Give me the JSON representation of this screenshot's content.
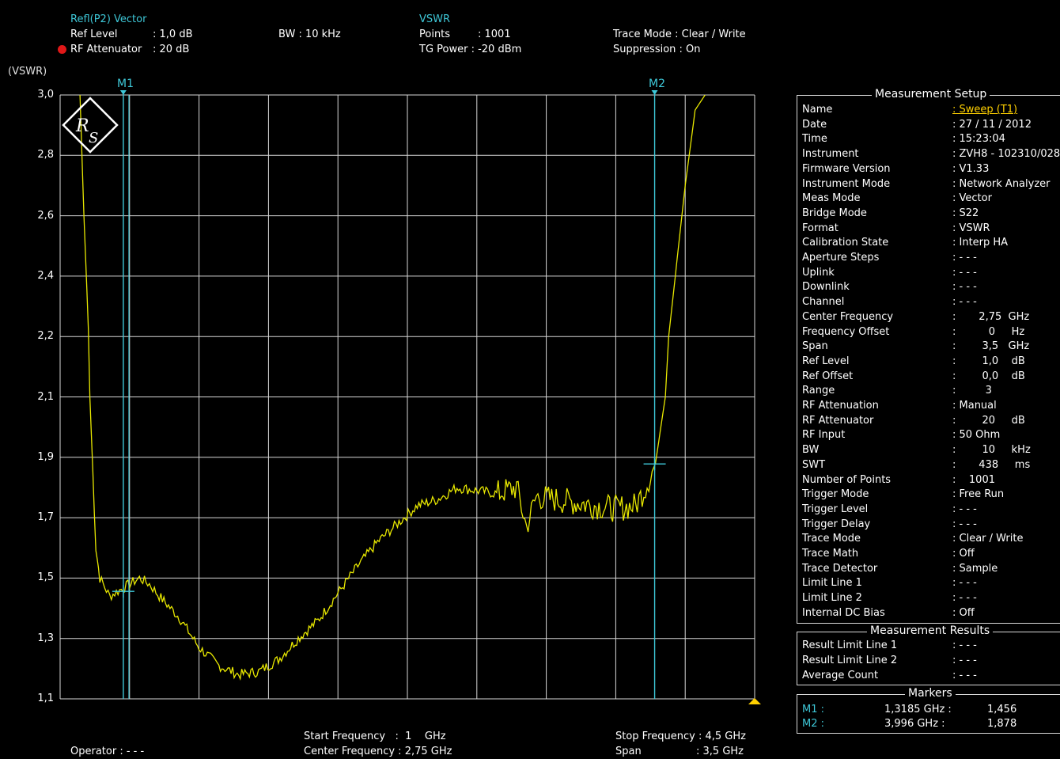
{
  "header": {
    "trace1_name": "Refl(P2) Vector",
    "ref_level_label": "Ref Level",
    "ref_level_value": ": 1,0 dB",
    "rf_att_label": "RF Attenuator",
    "rf_att_value": ": 20  dB",
    "bw": "BW : 10 kHz",
    "format_name": "VSWR",
    "points_label": "Points",
    "points_value": ": 1001",
    "tg_power": "TG Power : -20 dBm",
    "trace_mode": "Trace Mode : Clear / Write",
    "suppression": "Suppression : On",
    "y_unit": "(VSWR)"
  },
  "markers_on_plot": {
    "m1": "M1",
    "m2": "M2"
  },
  "footer": {
    "operator": "Operator : - - -",
    "start_freq": "Start Frequency   :  1    GHz",
    "center_freq": "Center Frequency : 2,75 GHz",
    "stop_freq": "Stop Frequency : 4,5 GHz",
    "span_label": "Span",
    "span_value": ": 3,5 GHz"
  },
  "chart_data": {
    "type": "line",
    "xlabel": "",
    "ylabel": "(VSWR)",
    "x_unit": "GHz",
    "xlim": [
      1,
      4.5
    ],
    "y_tick_labels": [
      "3,0",
      "2,8",
      "2,6",
      "2,4",
      "2,2",
      "2,1",
      "1,9",
      "1,7",
      "1,5",
      "1,3",
      "1,1"
    ],
    "grid": true,
    "trace_color": "#e8e800",
    "markers": [
      {
        "name": "M1",
        "x": 1.3185,
        "y": 1.456
      },
      {
        "name": "M2",
        "x": 3.996,
        "y": 1.878
      }
    ],
    "series": [
      {
        "x": [
          1.1,
          1.12,
          1.15,
          1.18,
          1.2,
          1.25,
          1.3,
          1.35,
          1.4,
          1.45,
          1.5,
          1.6,
          1.7,
          1.75,
          1.8,
          1.9,
          2.0,
          2.1,
          2.2,
          2.3,
          2.4,
          2.5,
          2.6,
          2.7,
          2.8,
          2.9,
          3.0,
          3.1,
          3.2,
          3.3,
          3.35,
          3.4,
          3.5,
          3.6,
          3.7,
          3.8,
          3.9,
          3.95,
          4.0,
          4.05,
          4.1,
          4.15,
          4.2,
          4.25
        ],
        "y": [
          3.0,
          2.6,
          2.1,
          1.6,
          1.5,
          1.44,
          1.46,
          1.48,
          1.5,
          1.48,
          1.44,
          1.37,
          1.27,
          1.24,
          1.21,
          1.18,
          1.19,
          1.23,
          1.3,
          1.36,
          1.45,
          1.54,
          1.62,
          1.68,
          1.74,
          1.76,
          1.8,
          1.79,
          1.78,
          1.8,
          1.67,
          1.77,
          1.76,
          1.75,
          1.74,
          1.73,
          1.74,
          1.8,
          1.88,
          2.1,
          2.4,
          2.7,
          2.95,
          3.0
        ]
      }
    ]
  },
  "setup": {
    "title": "Measurement Setup",
    "rows": [
      {
        "label": "Name",
        "value": ": Sweep (T1)"
      },
      {
        "label": "Date",
        "value": ": 27 / 11 / 2012"
      },
      {
        "label": "Time",
        "value": ": 15:23:04"
      },
      {
        "label": "Instrument",
        "value": ": ZVH8 - 102310/028"
      },
      {
        "label": "Firmware Version",
        "value": ": V1.33"
      },
      {
        "label": "Instrument Mode",
        "value": ": Network Analyzer"
      },
      {
        "label": "Meas Mode",
        "value": ": Vector"
      },
      {
        "label": "Bridge Mode",
        "value": ": S22"
      },
      {
        "label": "Format",
        "value": ": VSWR"
      },
      {
        "label": "Calibration State",
        "value": ": Interp HA"
      },
      {
        "label": "Aperture Steps",
        "value": ": - - -"
      },
      {
        "label": "Uplink",
        "value": ": - - -"
      },
      {
        "label": "Downlink",
        "value": ": - - -"
      },
      {
        "label": "Channel",
        "value": ": - - -"
      },
      {
        "label": "Center Frequency",
        "value": ":       2,75  GHz"
      },
      {
        "label": "Frequency Offset",
        "value": ":          0     Hz"
      },
      {
        "label": "Span",
        "value": ":        3,5   GHz"
      },
      {
        "label": "Ref Level",
        "value": ":        1,0    dB"
      },
      {
        "label": "Ref Offset",
        "value": ":        0,0    dB"
      },
      {
        "label": "Range",
        "value": ":         3"
      },
      {
        "label": "RF Attenuation",
        "value": ": Manual"
      },
      {
        "label": "RF Attenuator",
        "value": ":        20     dB"
      },
      {
        "label": "RF Input",
        "value": ": 50 Ohm"
      },
      {
        "label": "BW",
        "value": ":        10     kHz"
      },
      {
        "label": "SWT",
        "value": ":       438     ms"
      },
      {
        "label": "Number of Points",
        "value": ":    1001"
      },
      {
        "label": "Trigger Mode",
        "value": ": Free Run"
      },
      {
        "label": "Trigger Level",
        "value": ": - - -"
      },
      {
        "label": "Trigger Delay",
        "value": ": - - -"
      },
      {
        "label": "Trace Mode",
        "value": ": Clear / Write"
      },
      {
        "label": "Trace Math",
        "value": ": Off"
      },
      {
        "label": "Trace Detector",
        "value": ": Sample"
      },
      {
        "label": "Limit Line 1",
        "value": ": - - -"
      },
      {
        "label": "Limit Line 2",
        "value": ": - - -"
      },
      {
        "label": "Internal DC Bias",
        "value": ": Off"
      }
    ]
  },
  "results": {
    "title": "Measurement Results",
    "rows": [
      {
        "label": "Result Limit Line 1",
        "value": ": - - -"
      },
      {
        "label": "Result Limit Line 2",
        "value": ": - - -"
      },
      {
        "label": "Average Count",
        "value": ": - - -"
      }
    ]
  },
  "markers": {
    "title": "Markers",
    "rows": [
      {
        "name": "M1 :",
        "freq": "1,3185 GHz :",
        "value": "1,456"
      },
      {
        "name": "M2 :",
        "freq": "3,996 GHz :",
        "value": "1,878"
      }
    ]
  }
}
